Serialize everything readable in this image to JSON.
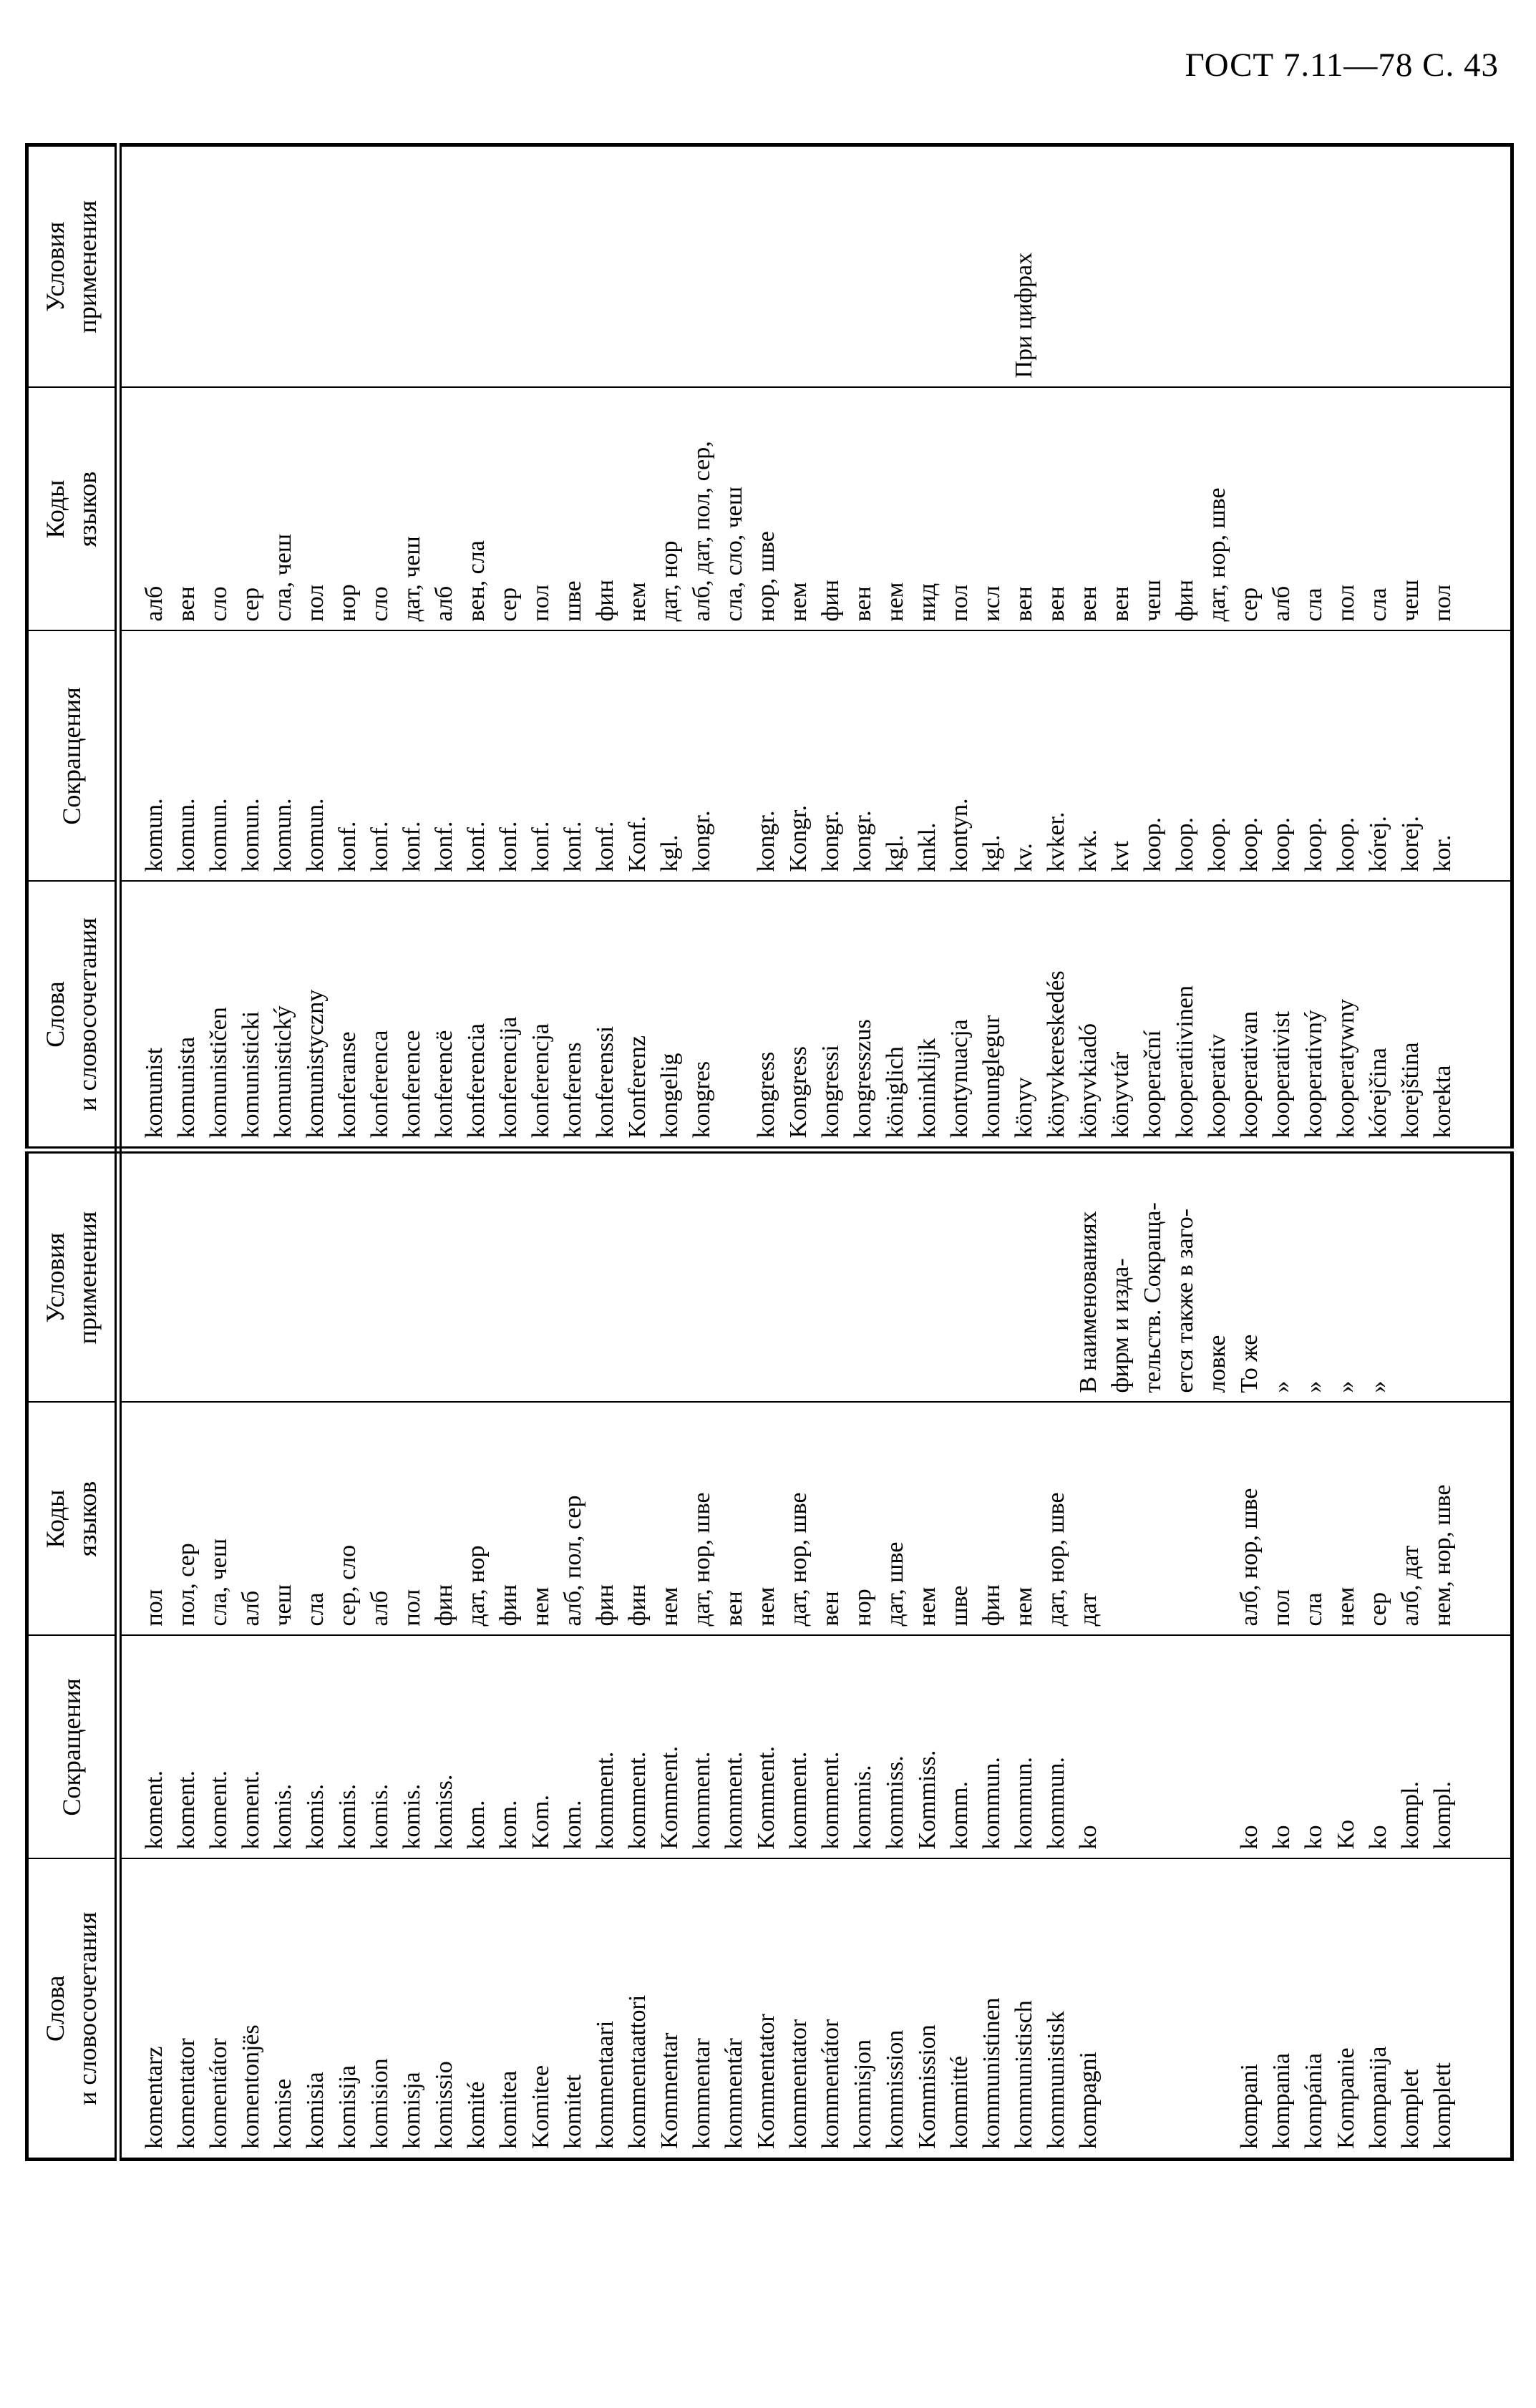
{
  "page": {
    "header_right": "ГОСТ 7.11—78 С. 43"
  },
  "table": {
    "column_headers": {
      "words": "Слова\nи словосочетания",
      "abbr": "Сокращения",
      "codes": "Коды\nязыков",
      "conditions": "Условия\nприменения"
    },
    "rows": [
      {
        "a": [
          "komentarz",
          "koment.",
          "пол",
          ""
        ],
        "b": [
          "komunist",
          "komun.",
          "алб",
          ""
        ]
      },
      {
        "a": [
          "komentator",
          "koment.",
          "пол, сер",
          ""
        ],
        "b": [
          "komunista",
          "komun.",
          "вен",
          ""
        ]
      },
      {
        "a": [
          "komentátor",
          "koment.",
          "сла, чеш",
          ""
        ],
        "b": [
          "komunističen",
          "komun.",
          "сло",
          ""
        ]
      },
      {
        "a": [
          "komentonjës",
          "koment.",
          "алб",
          ""
        ],
        "b": [
          "komunisticki",
          "komun.",
          "сер",
          ""
        ]
      },
      {
        "a": [
          "komise",
          "komis.",
          "чеш",
          ""
        ],
        "b": [
          "komunistický",
          "komun.",
          "сла, чеш",
          ""
        ]
      },
      {
        "a": [
          "komisia",
          "komis.",
          "сла",
          ""
        ],
        "b": [
          "komunistyczny",
          "komun.",
          "пол",
          ""
        ]
      },
      {
        "a": [
          "komisija",
          "komis.",
          "сер, сло",
          ""
        ],
        "b": [
          "konferanse",
          "konf.",
          "нор",
          ""
        ]
      },
      {
        "a": [
          "komision",
          "komis.",
          "алб",
          ""
        ],
        "b": [
          "konferenca",
          "konf.",
          "сло",
          ""
        ]
      },
      {
        "a": [
          "komisja",
          "komis.",
          "пол",
          ""
        ],
        "b": [
          "konference",
          "konf.",
          "дат, чеш",
          ""
        ]
      },
      {
        "a": [
          "komissio",
          "komiss.",
          "фин",
          ""
        ],
        "b": [
          "konferencë",
          "konf.",
          "алб",
          ""
        ]
      },
      {
        "a": [
          "komité",
          "kom.",
          "дат, нор",
          ""
        ],
        "b": [
          "konferencia",
          "konf.",
          "вен, сла",
          ""
        ]
      },
      {
        "a": [
          "komitea",
          "kom.",
          "фин",
          ""
        ],
        "b": [
          "konferencija",
          "konf.",
          "сер",
          ""
        ]
      },
      {
        "a": [
          "Komitee",
          "Kom.",
          "нем",
          ""
        ],
        "b": [
          "konferencja",
          "konf.",
          "пол",
          ""
        ]
      },
      {
        "a": [
          "komitet",
          "kom.",
          "алб, пол, сер",
          ""
        ],
        "b": [
          "konferens",
          "konf.",
          "шве",
          ""
        ]
      },
      {
        "a": [
          "kommentaari",
          "komment.",
          "фин",
          ""
        ],
        "b": [
          "konferenssi",
          "konf.",
          "фин",
          ""
        ]
      },
      {
        "a": [
          "kommentaattori",
          "komment.",
          "фин",
          ""
        ],
        "b": [
          "Konferenz",
          "Konf.",
          "нем",
          ""
        ]
      },
      {
        "a": [
          "Kommentar",
          "Komment.",
          "нем",
          ""
        ],
        "b": [
          "kongelig",
          "kgl.",
          "дат, нор",
          ""
        ]
      },
      {
        "a": [
          "kommentar",
          "komment.",
          "дат, нор, шве",
          ""
        ],
        "b": [
          "kongres",
          "kongr.",
          {
            "t": "алб, дат, пол, сер,\nсла, сло, чеш",
            "rs": 2
          },
          ""
        ]
      },
      {
        "a": [
          "kommentár",
          "komment.",
          "вен",
          ""
        ],
        "b": [
          "",
          "",
          null,
          ""
        ]
      },
      {
        "a": [
          "Kommentator",
          "Komment.",
          "нем",
          ""
        ],
        "b": [
          "kongress",
          "kongr.",
          "нор, шве",
          ""
        ]
      },
      {
        "a": [
          "kommentator",
          "komment.",
          "дат, нор, шве",
          ""
        ],
        "b": [
          "Kongress",
          "Kongr.",
          "нем",
          ""
        ]
      },
      {
        "a": [
          "kommentátor",
          "komment.",
          "вен",
          ""
        ],
        "b": [
          "kongressi",
          "kongr.",
          "фин",
          ""
        ]
      },
      {
        "a": [
          "kommisjon",
          "kommis.",
          "нор",
          ""
        ],
        "b": [
          "kongresszus",
          "kongr.",
          "вен",
          ""
        ]
      },
      {
        "a": [
          "kommission",
          "kommiss.",
          "дат, шве",
          ""
        ],
        "b": [
          "königlich",
          "kgl.",
          "нем",
          ""
        ]
      },
      {
        "a": [
          "Kommission",
          "Kommiss.",
          "нем",
          ""
        ],
        "b": [
          "koninklijk",
          "knkl.",
          "нид",
          ""
        ]
      },
      {
        "a": [
          "kommitté",
          "komm.",
          "шве",
          ""
        ],
        "b": [
          "kontynuacja",
          "kontyn.",
          "пол",
          ""
        ]
      },
      {
        "a": [
          "kommunistinen",
          "kommun.",
          "фин",
          ""
        ],
        "b": [
          "konunglegur",
          "kgl.",
          "исл",
          ""
        ]
      },
      {
        "a": [
          "kommunistisch",
          "kommun.",
          "нем",
          ""
        ],
        "b": [
          "könyv",
          "kv.",
          "вен",
          "При цифрах"
        ]
      },
      {
        "a": [
          "kommunistisk",
          "kommun.",
          "дат, нор, шве",
          ""
        ],
        "b": [
          "könyvkereskedés",
          "kvker.",
          "вен",
          ""
        ]
      },
      {
        "a": [
          "kompagni",
          "ko",
          "дат",
          {
            "t": "В наименованиях\nфирм и изда-\nтельств. Сокраща-\nется также в заго-\nловке",
            "rs": 5
          }
        ],
        "b": [
          "könyvkiadó",
          "kvk.",
          "вен",
          ""
        ]
      },
      {
        "a": [
          "",
          "",
          "",
          null
        ],
        "b": [
          "könyvtár",
          "kvt",
          "вен",
          ""
        ]
      },
      {
        "a": [
          "",
          "",
          "",
          null
        ],
        "b": [
          "kooperační",
          "koop.",
          "чеш",
          ""
        ]
      },
      {
        "a": [
          "",
          "",
          "",
          null
        ],
        "b": [
          "kooperatiivinen",
          "koop.",
          "фин",
          ""
        ]
      },
      {
        "a": [
          "",
          "",
          "",
          null
        ],
        "b": [
          "kooperativ",
          "koop.",
          "дат, нор, шве",
          ""
        ]
      },
      {
        "a": [
          "kompani",
          "ko",
          "алб, нор, шве",
          "То же"
        ],
        "b": [
          "kooperativan",
          "koop.",
          "сер",
          ""
        ]
      },
      {
        "a": [
          "kompania",
          "ko",
          "пол",
          "»"
        ],
        "b": [
          "kooperativist",
          "koop.",
          "алб",
          ""
        ]
      },
      {
        "a": [
          "kompánia",
          "ko",
          "сла",
          "»"
        ],
        "b": [
          "kooperativný",
          "koop.",
          "сла",
          ""
        ]
      },
      {
        "a": [
          "Kompanie",
          "Ko",
          "нем",
          "»"
        ],
        "b": [
          "kooperatywny",
          "koop.",
          "пол",
          ""
        ]
      },
      {
        "a": [
          "kompanija",
          "ko",
          "сер",
          "»"
        ],
        "b": [
          "kórejčina",
          "kórej.",
          "сла",
          ""
        ]
      },
      {
        "a": [
          "komplet",
          "kompl.",
          "алб, дат",
          ""
        ],
        "b": [
          "korejština",
          "korej.",
          "чеш",
          ""
        ]
      },
      {
        "a": [
          "komplett",
          "kompl.",
          "нем, нор, шве",
          ""
        ],
        "b": [
          "korekta",
          "kor.",
          "пол",
          ""
        ]
      }
    ]
  },
  "colors": {
    "ink": "#000000",
    "paper": "#ffffff"
  }
}
